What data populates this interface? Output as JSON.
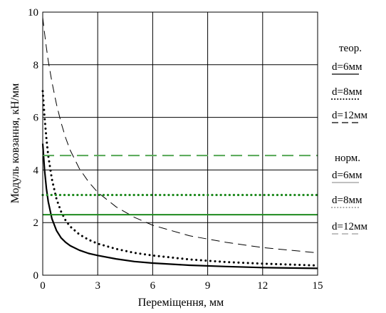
{
  "chart_data": {
    "type": "line",
    "title": "",
    "xlabel": "Переміщення, мм",
    "ylabel": "Модуль ковзання, кН/мм",
    "xlim": [
      0,
      15
    ],
    "ylim": [
      0,
      10
    ],
    "xticks": [
      0,
      3,
      6,
      9,
      12,
      15
    ],
    "yticks": [
      0,
      2,
      4,
      6,
      8,
      10
    ],
    "grid": true,
    "legend_position": "right",
    "legend_groups": [
      {
        "title": "теор.",
        "entries": [
          "d=6мм",
          "d=8мм",
          "d=12мм"
        ]
      },
      {
        "title": "норм.",
        "entries": [
          "d=6мм",
          "d=8мм",
          "d=12мм"
        ]
      }
    ],
    "series": [
      {
        "group": 0,
        "label_index": 0,
        "color": "#000000",
        "style": "solid",
        "x": [
          0,
          0.1,
          0.2,
          0.3,
          0.5,
          0.75,
          1,
          1.25,
          1.5,
          2,
          2.5,
          3,
          4,
          5,
          6,
          8,
          10,
          12,
          15
        ],
        "y": [
          5.0,
          4.0,
          3.3,
          2.8,
          2.15,
          1.7,
          1.42,
          1.25,
          1.12,
          0.95,
          0.83,
          0.75,
          0.62,
          0.52,
          0.46,
          0.38,
          0.33,
          0.29,
          0.26
        ]
      },
      {
        "group": 0,
        "label_index": 1,
        "color": "#000000",
        "style": "dotted",
        "x": [
          0,
          0.1,
          0.2,
          0.3,
          0.5,
          0.75,
          1,
          1.25,
          1.5,
          2,
          2.5,
          3,
          4,
          5,
          6,
          8,
          10,
          12,
          15
        ],
        "y": [
          7.0,
          6.0,
          5.2,
          4.55,
          3.65,
          2.9,
          2.42,
          2.08,
          1.85,
          1.55,
          1.35,
          1.2,
          1.0,
          0.85,
          0.75,
          0.6,
          0.5,
          0.44,
          0.37
        ]
      },
      {
        "group": 0,
        "label_index": 2,
        "color": "#000000",
        "style": "dashed",
        "x": [
          0,
          0.1,
          0.2,
          0.3,
          0.5,
          0.75,
          1,
          1.25,
          1.5,
          2,
          2.5,
          3,
          4,
          5,
          6,
          8,
          10,
          12,
          15
        ],
        "y": [
          9.8,
          9.2,
          8.65,
          8.15,
          7.35,
          6.5,
          5.8,
          5.22,
          4.75,
          4.05,
          3.55,
          3.15,
          2.6,
          2.2,
          1.9,
          1.5,
          1.25,
          1.05,
          0.85
        ]
      },
      {
        "group": 1,
        "label_index": 0,
        "color": "#1e8a1e",
        "style": "solid",
        "x": [
          0,
          15
        ],
        "y": [
          2.3,
          2.3
        ]
      },
      {
        "group": 1,
        "label_index": 1,
        "color": "#1e8a1e",
        "style": "dotted",
        "x": [
          0,
          15
        ],
        "y": [
          3.05,
          3.05
        ]
      },
      {
        "group": 1,
        "label_index": 2,
        "color": "#55a855",
        "style": "dashed",
        "x": [
          0,
          15
        ],
        "y": [
          4.55,
          4.55
        ]
      }
    ]
  }
}
